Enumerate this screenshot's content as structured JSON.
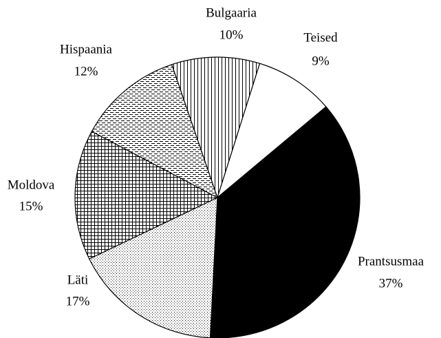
{
  "chart_data": {
    "type": "pie",
    "categories": [
      "Bulgaaria",
      "Teised",
      "Prantsusmaa",
      "Läti",
      "Moldova",
      "Hispaania"
    ],
    "values": [
      10,
      9,
      37,
      17,
      15,
      12
    ],
    "value_labels": [
      "10%",
      "9%",
      "37%",
      "17%",
      "15%",
      "12%"
    ],
    "patterns": [
      "vertical-lines",
      "none",
      "solid",
      "dots",
      "grid",
      "dashes"
    ],
    "color": "#000000"
  }
}
